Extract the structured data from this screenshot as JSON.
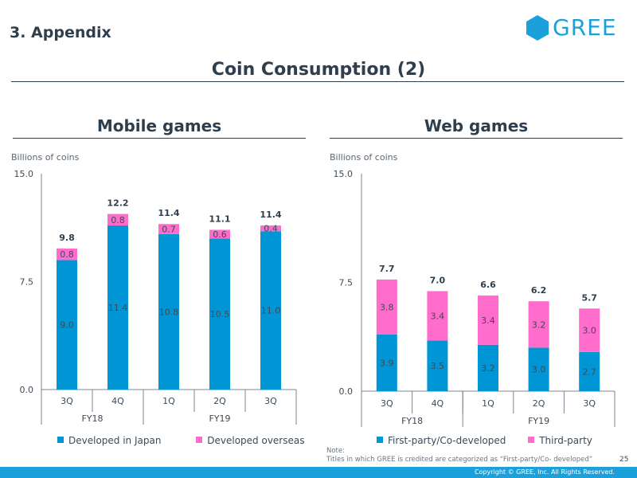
{
  "header": {
    "section": "3. Appendix",
    "logo_text": "GREE",
    "title": "Coin Consumption (2)"
  },
  "colors": {
    "primary": "#0096d6",
    "secondary": "#ff6ccb",
    "text": "#2f3e4c",
    "brand": "#1aa1dc"
  },
  "chart_data": [
    {
      "type": "bar",
      "stacked": true,
      "title": "Mobile games",
      "ylabel": "Billions of coins",
      "ylim": [
        0,
        15
      ],
      "yticks": [
        "0.0",
        "7.5",
        "15.0"
      ],
      "categories": [
        "3Q",
        "4Q",
        "1Q",
        "2Q",
        "3Q"
      ],
      "groups": [
        {
          "label": "FY18",
          "count": 2
        },
        {
          "label": "FY19",
          "count": 3
        }
      ],
      "series": [
        {
          "name": "Developed in Japan",
          "values": [
            9.0,
            11.4,
            10.8,
            10.5,
            11.0
          ],
          "labels": [
            "9.0",
            "11.4",
            "10.8",
            "10.5",
            "11.0"
          ]
        },
        {
          "name": "Developed overseas",
          "values": [
            0.8,
            0.8,
            0.7,
            0.6,
            0.4
          ],
          "labels": [
            "0.8",
            "0.8",
            "0.7",
            "0.6",
            "0.4"
          ]
        }
      ],
      "totals": [
        "9.8",
        "12.2",
        "11.4",
        "11.1",
        "11.4"
      ]
    },
    {
      "type": "bar",
      "stacked": true,
      "title": "Web games",
      "ylabel": "Billions of coins",
      "ylim": [
        0,
        15
      ],
      "yticks": [
        "0.0",
        "7.5",
        "15.0"
      ],
      "categories": [
        "3Q",
        "4Q",
        "1Q",
        "2Q",
        "3Q"
      ],
      "groups": [
        {
          "label": "FY18",
          "count": 2
        },
        {
          "label": "FY19",
          "count": 3
        }
      ],
      "series": [
        {
          "name": "First-party/Co-developed",
          "values": [
            3.9,
            3.5,
            3.2,
            3.0,
            2.7
          ],
          "labels": [
            "3.9",
            "3.5",
            "3.2",
            "3.0",
            "2.7"
          ]
        },
        {
          "name": "Third-party",
          "values": [
            3.8,
            3.4,
            3.4,
            3.2,
            3.0
          ],
          "labels": [
            "3.8",
            "3.4",
            "3.4",
            "3.2",
            "3.0"
          ]
        }
      ],
      "totals": [
        "7.7",
        "7.0",
        "6.6",
        "6.2",
        "5.7"
      ]
    }
  ],
  "note": {
    "heading": "Note:",
    "text": "Titles in which GREE is credited are categorized as “First-party/Co- developed”"
  },
  "footer": {
    "page_number": "25",
    "copyright": "Copyright © GREE, Inc. All Rights Reserved."
  }
}
